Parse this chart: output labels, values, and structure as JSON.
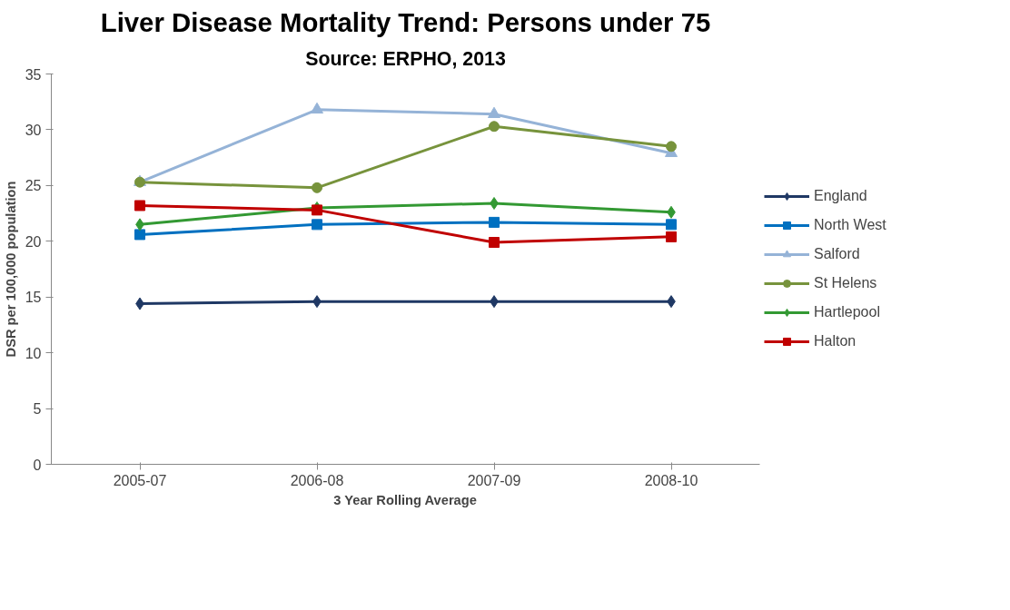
{
  "chart_data": {
    "type": "line",
    "title": "Liver Disease Mortality Trend: Persons under 75",
    "subtitle": "Source: ERPHO, 2013",
    "xlabel": "3 Year Rolling Average",
    "ylabel": "DSR per 100,000 population",
    "categories": [
      "2005-07",
      "2006-08",
      "2007-09",
      "2008-10"
    ],
    "ylim": [
      0,
      35
    ],
    "yticks": [
      0,
      5,
      10,
      15,
      20,
      25,
      30,
      35
    ],
    "grid": false,
    "legend": "right",
    "series": [
      {
        "name": "England",
        "color": "#1f3864",
        "marker": "diamond",
        "values": [
          14.4,
          14.6,
          14.6,
          14.6
        ]
      },
      {
        "name": "North West",
        "color": "#0070c0",
        "marker": "square",
        "values": [
          20.6,
          21.5,
          21.7,
          21.5
        ]
      },
      {
        "name": "Salford",
        "color": "#95b3d7",
        "marker": "triangle",
        "values": [
          25.3,
          31.8,
          31.4,
          27.9
        ]
      },
      {
        "name": "St Helens",
        "color": "#77933c",
        "marker": "circle",
        "values": [
          25.3,
          24.8,
          30.3,
          28.5
        ]
      },
      {
        "name": "Hartlepool",
        "color": "#339933",
        "marker": "diamond",
        "values": [
          21.5,
          23.0,
          23.4,
          22.6
        ]
      },
      {
        "name": "Halton",
        "color": "#c00000",
        "marker": "square",
        "values": [
          23.2,
          22.8,
          19.9,
          20.4
        ]
      }
    ]
  }
}
